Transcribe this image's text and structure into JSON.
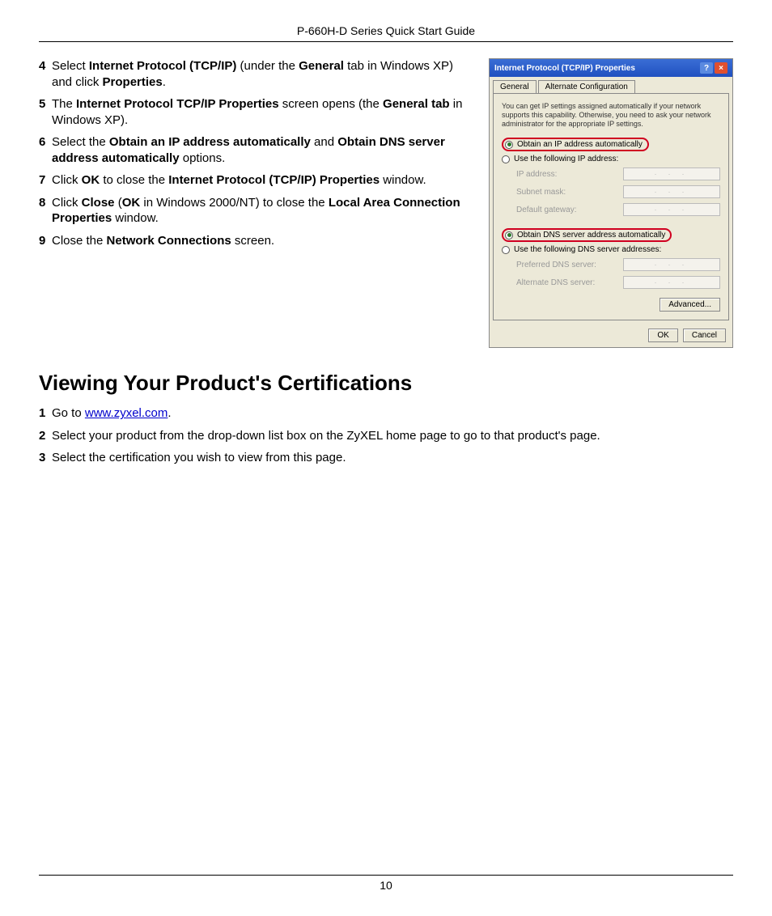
{
  "header": {
    "title": "P-660H-D Series Quick Start Guide"
  },
  "steps1": [
    {
      "n": "4",
      "parts": [
        "Select ",
        {
          "b": "Internet Protocol (TCP/IP)"
        },
        " (under the ",
        {
          "b": "General"
        },
        " tab in Windows XP) and click ",
        {
          "b": "Properties"
        },
        "."
      ]
    },
    {
      "n": "5",
      "parts": [
        "The ",
        {
          "b": "Internet Protocol TCP/IP Properties"
        },
        " screen opens (the ",
        {
          "b": "General tab"
        },
        " in Windows XP)."
      ]
    },
    {
      "n": "6",
      "parts": [
        "Select the ",
        {
          "b": "Obtain an IP address automatically"
        },
        " and ",
        {
          "b": "Obtain DNS server address automatically"
        },
        " options."
      ]
    },
    {
      "n": "7",
      "parts": [
        "Click ",
        {
          "b": "OK"
        },
        " to close the ",
        {
          "b": "Internet Protocol (TCP/IP) Properties"
        },
        " window."
      ]
    },
    {
      "n": "8",
      "parts": [
        "Click ",
        {
          "b": "Close"
        },
        " (",
        {
          "b": "OK"
        },
        " in Windows 2000/NT) to close the ",
        {
          "b": "Local Area Connection Properties"
        },
        " window."
      ]
    },
    {
      "n": "9",
      "parts": [
        "Close the ",
        {
          "b": "Network Connections"
        },
        " screen."
      ]
    }
  ],
  "heading": "Viewing Your Product's Certifications",
  "steps2": [
    {
      "n": "1",
      "parts": [
        "Go to ",
        {
          "link": "www.zyxel.com"
        },
        "."
      ]
    },
    {
      "n": "2",
      "parts": [
        "Select your product from the drop-down list box on the ZyXEL home page to go to that product's page."
      ]
    },
    {
      "n": "3",
      "parts": [
        "Select the certification you wish to view from this page."
      ]
    }
  ],
  "dialog": {
    "title": "Internet Protocol (TCP/IP) Properties",
    "tabs": {
      "general": "General",
      "alt": "Alternate Configuration"
    },
    "desc": "You can get IP settings assigned automatically if your network supports this capability. Otherwise, you need to ask your network administrator for the appropriate IP settings.",
    "opt_ip_auto": "Obtain an IP address automatically",
    "opt_ip_manual": "Use the following IP address:",
    "lbl_ip": "IP address:",
    "lbl_mask": "Subnet mask:",
    "lbl_gw": "Default gateway:",
    "opt_dns_auto": "Obtain DNS server address automatically",
    "opt_dns_manual": "Use the following DNS server addresses:",
    "lbl_dns1": "Preferred DNS server:",
    "lbl_dns2": "Alternate DNS server:",
    "btn_adv": "Advanced...",
    "btn_ok": "OK",
    "btn_cancel": "Cancel",
    "ip_dots": ".   .   ."
  },
  "pagenum": "10",
  "colors": {
    "titlebar_start": "#3a6ed5",
    "titlebar_end": "#2050c0",
    "close_btn": "#e05030",
    "dialog_bg": "#ece9d8",
    "ring": "#d00020",
    "link": "#0000cc"
  }
}
